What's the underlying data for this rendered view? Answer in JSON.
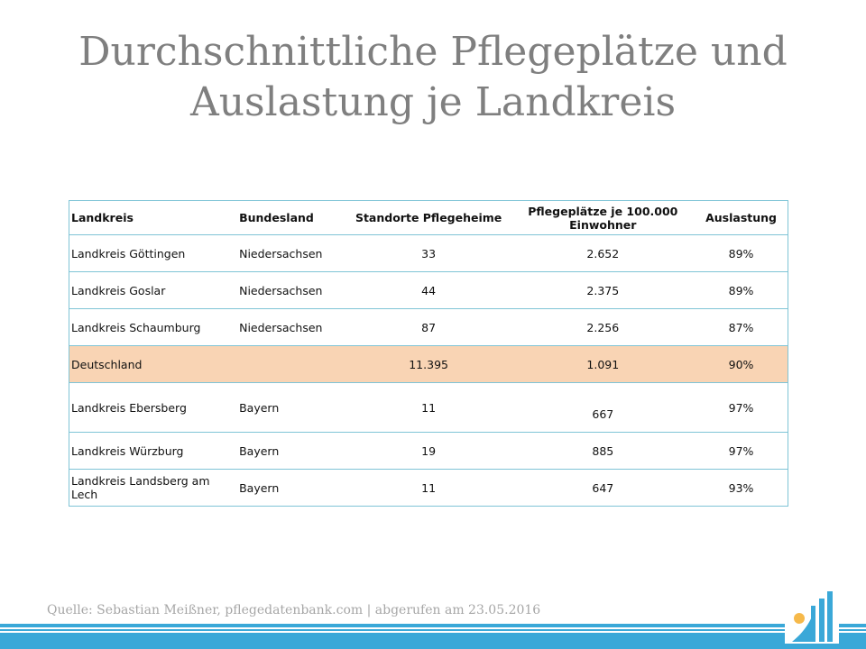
{
  "slide": {
    "title_line1": "Durchschnittliche Pflegeplätze und",
    "title_line2": "Auslastung je Landkreis"
  },
  "table": {
    "headers": {
      "landkreis": "Landkreis",
      "bundesland": "Bundesland",
      "standorte": "Standorte Pflegeheime",
      "pflegeplaetze": "Pflegeplätze je 100.000 Einwohner",
      "auslastung": "Auslastung"
    },
    "rows": [
      {
        "landkreis": "Landkreis Göttingen",
        "bundesland": "Niedersachsen",
        "standorte": "33",
        "pflegeplaetze": "2.652",
        "auslastung": "89%"
      },
      {
        "landkreis": "Landkreis Goslar",
        "bundesland": "Niedersachsen",
        "standorte": "44",
        "pflegeplaetze": "2.375",
        "auslastung": "89%"
      },
      {
        "landkreis": "Landkreis Schaumburg",
        "bundesland": "Niedersachsen",
        "standorte": "87",
        "pflegeplaetze": "2.256",
        "auslastung": "87%"
      },
      {
        "landkreis": "Deutschland",
        "bundesland": "",
        "standorte": "11.395",
        "pflegeplaetze": "1.091",
        "auslastung": "90%"
      },
      {
        "landkreis": "Landkreis Ebersberg",
        "bundesland": "Bayern",
        "standorte": "11",
        "pflegeplaetze": "667",
        "auslastung": "97%"
      },
      {
        "landkreis": "Landkreis Würzburg",
        "bundesland": "Bayern",
        "standorte": "19",
        "pflegeplaetze": "885",
        "auslastung": "97%"
      },
      {
        "landkreis": "Landkreis Landsberg am Lech",
        "bundesland": "Bayern",
        "standorte": "11",
        "pflegeplaetze": "647",
        "auslastung": "93%"
      }
    ]
  },
  "footer": {
    "source": "Quelle: Sebastian Meißner, pflegedatenbank.com | abgerufen am 23.05.2016"
  },
  "colors": {
    "highlight_row": "#f9d4b4",
    "border": "#7fc4d6",
    "accent": "#3aa8d8",
    "logo_dot": "#f6b94a"
  },
  "icons": {
    "logo": "bar-chart-logo-icon"
  }
}
